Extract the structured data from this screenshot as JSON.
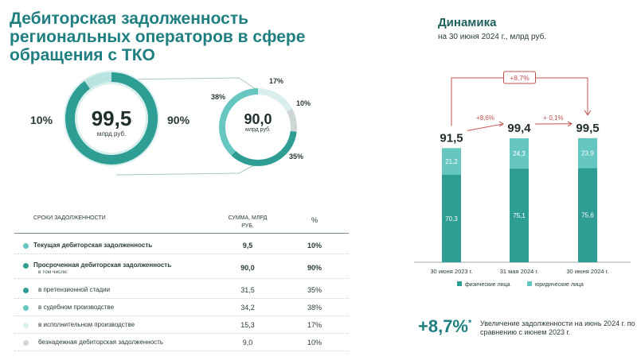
{
  "title": "Дебиторская задолженность региональных операторов в сфере обращения с ТКО",
  "donut_total": {
    "value": "99,5",
    "unit": "млрд руб.",
    "left_pct": "10%",
    "right_pct": "90%"
  },
  "donut_overdue": {
    "value": "90,0",
    "unit": "млрд руб.",
    "labels": {
      "p17": "17%",
      "p38": "38%",
      "p10": "10%",
      "p35": "35%"
    }
  },
  "colors": {
    "dark": "#2e9e94",
    "mid": "#66c6c0",
    "light": "#b7e4e1",
    "pale": "#d9efee",
    "grey": "#cfd6d6",
    "red": "#c0504d"
  },
  "table": {
    "col_term": "СРОКИ ЗАДОЛЖЕННОСТИ",
    "col_sum": "СУММА, МЛРД РУБ.",
    "col_pct": "%",
    "rows": [
      {
        "label": "Текущая дебиторская задолженность",
        "sum": "9,5",
        "pct": "10%"
      },
      {
        "label": "Просроченная дебиторская задолженность",
        "sub": "в том числе:",
        "sum": "90,0",
        "pct": "90%"
      },
      {
        "label": "в претензионной стадии",
        "sum": "31,5",
        "pct": "35%"
      },
      {
        "label": "в судебном производстве",
        "sum": "34,2",
        "pct": "38%"
      },
      {
        "label": "в исполнительном производстве",
        "sum": "15,3",
        "pct": "17%"
      },
      {
        "label": "безнадежная дебиторская задолженность",
        "sum": "9,0",
        "pct": "10%"
      }
    ]
  },
  "dynamics": {
    "title": "Динамика",
    "subtitle": "на 30 июня 2024 г., млрд руб.",
    "overall_change": "+8,7%",
    "changes": [
      "+8,6%",
      "+ 0,1%"
    ],
    "legend": [
      "физические лица",
      "юридические лица"
    ]
  },
  "chart_data": {
    "type": "bar",
    "stacked": true,
    "categories": [
      "30 июня 2023 г.",
      "31 мая 2024 г.",
      "30 июня 2024 г."
    ],
    "series": [
      {
        "name": "физические лица",
        "values": [
          70.3,
          75.1,
          75.6
        ],
        "labels": [
          "70,3",
          "75,1",
          "75,6"
        ]
      },
      {
        "name": "юридические лица",
        "values": [
          21.2,
          24.3,
          23.9
        ],
        "labels": [
          "21,2",
          "24,3",
          "23,9"
        ]
      }
    ],
    "totals": [
      "91,5",
      "99,4",
      "99,5"
    ]
  },
  "growth_note": {
    "value": "+8,7%",
    "asterisk": "*",
    "text": "Увеличение задолженности на июнь 2024 г. по сравнению с июнем 2023 г."
  }
}
